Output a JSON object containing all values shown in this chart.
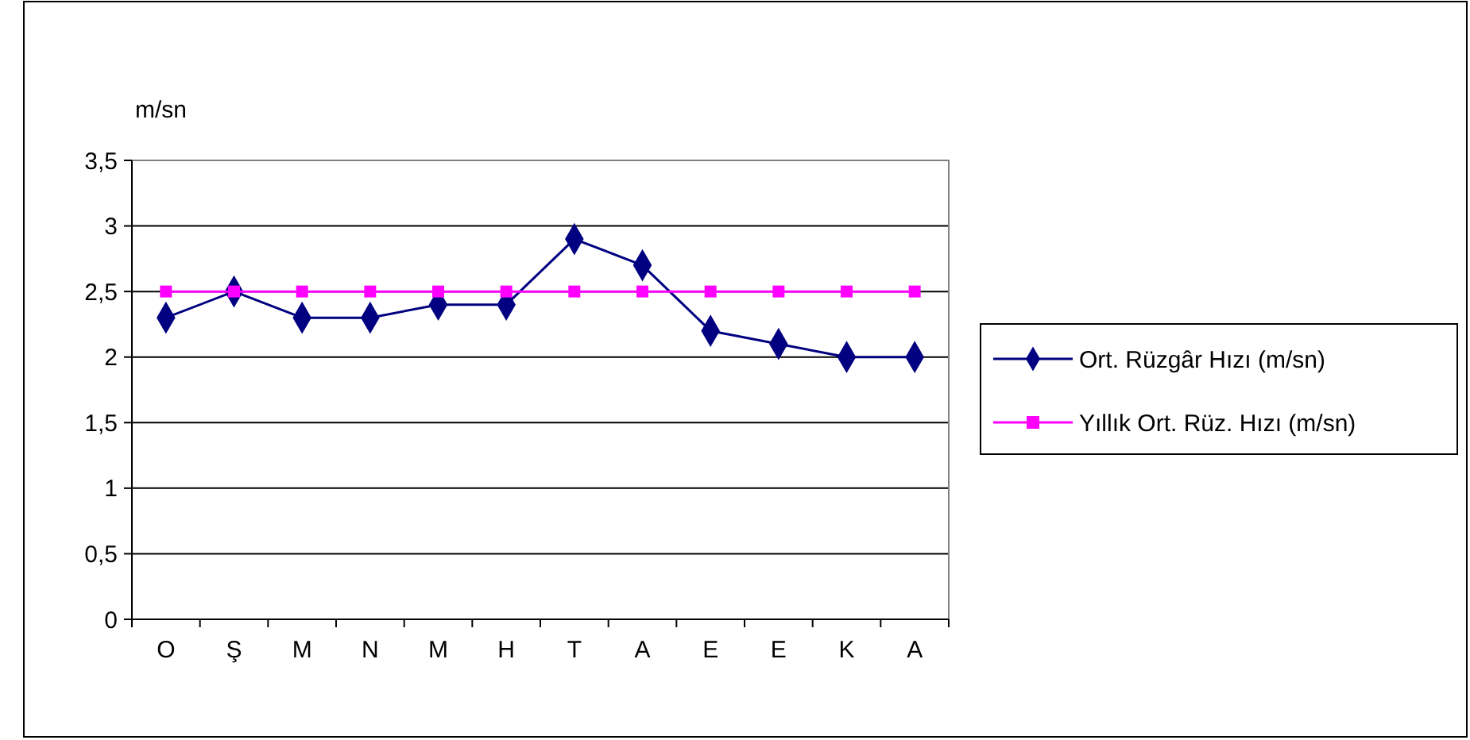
{
  "chart_data": {
    "type": "line",
    "ylabel": "m/sn",
    "categories": [
      "O",
      "Ş",
      "M",
      "N",
      "M",
      "H",
      "T",
      "A",
      "E",
      "E",
      "K",
      "A"
    ],
    "series": [
      {
        "name": "Ort. Rüzgâr Hızı (m/sn)",
        "color": "#000080",
        "marker": "diamond",
        "values": [
          2.3,
          2.5,
          2.3,
          2.3,
          2.4,
          2.4,
          2.9,
          2.7,
          2.2,
          2.1,
          2.0,
          2.0
        ]
      },
      {
        "name": "Yıllık Ort. Rüz. Hızı (m/sn)",
        "color": "#ff00ff",
        "marker": "square",
        "values": [
          2.5,
          2.5,
          2.5,
          2.5,
          2.5,
          2.5,
          2.5,
          2.5,
          2.5,
          2.5,
          2.5,
          2.5
        ]
      }
    ],
    "ylim": [
      0,
      3.5
    ],
    "yticks": [
      0,
      {
        "value": 0.5,
        "label": "0,5"
      },
      1,
      {
        "value": 1.5,
        "label": "1,5"
      },
      2,
      {
        "value": 2.5,
        "label": "2,5"
      },
      3,
      {
        "value": 3.5,
        "label": "3,5"
      }
    ],
    "grid": "y",
    "legend": "right",
    "line_style": "solid"
  }
}
